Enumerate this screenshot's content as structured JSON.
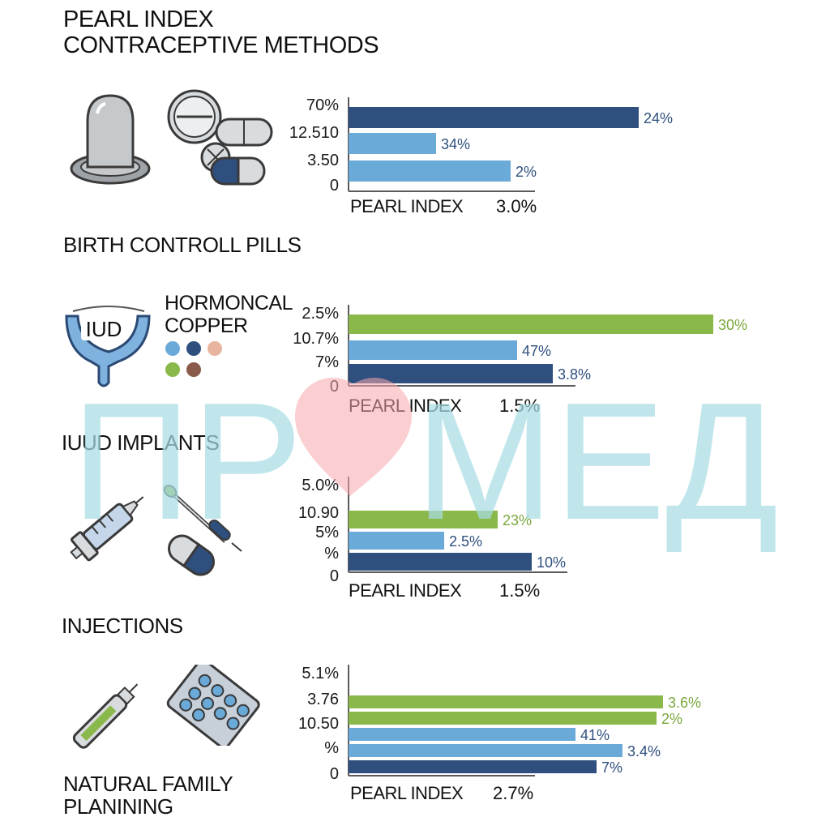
{
  "header": {
    "title_line1": "PEARL INDEX",
    "title_line2": "CONTRACEPTIVE METHODS"
  },
  "sections": {
    "birth_control": "BIRTH CONTROLL PILLS",
    "implants": "IUUD IMPLANTS",
    "injections": "INJECTIONS",
    "natural_line1": "NATURAL FAMILY",
    "natural_line2": "PLANINING"
  },
  "iud": {
    "badge": "IUD",
    "legend_line1": "HORMONCAL",
    "legend_line2": "COPPER"
  },
  "legend_dot_colors": [
    "#6aaad8",
    "#2f4f7f",
    "#e8b4a0",
    "#8bb84a",
    "#8a5a4a"
  ],
  "watermark": {
    "text_left": "ПР",
    "text_right": "МЕД",
    "text_color": "#a8dde4",
    "heart_color": "#f7a7ab"
  },
  "colors": {
    "navy": "#2f4f7f",
    "light_blue": "#6aaad8",
    "green": "#8bb84a"
  },
  "icons": [
    "condom-icon",
    "pill-icon",
    "capsule-icon",
    "iud-icon",
    "syringe-icon",
    "dropper-icon",
    "injector-pen-icon",
    "blister-pack-icon"
  ],
  "chart_data": [
    {
      "type": "bar",
      "orientation": "horizontal",
      "tick_labels": [
        "70%",
        "12.510",
        "3.50",
        "0"
      ],
      "series": [
        {
          "value": 24,
          "label": "24%",
          "color": "#2f4f7f"
        },
        {
          "value": 34,
          "label": "34%",
          "color": "#6aaad8"
        },
        {
          "value": 2,
          "label": "2%",
          "color": "#6aaad8"
        }
      ],
      "xlabel": "PEARL INDEX",
      "pearl_value": "3.0%"
    },
    {
      "type": "bar",
      "orientation": "horizontal",
      "tick_labels": [
        "2.5%",
        "10.7%",
        "7%",
        "0"
      ],
      "series": [
        {
          "value": 30,
          "label": "30%",
          "color": "#8bb84a"
        },
        {
          "value": 47,
          "label": "47%",
          "color": "#6aaad8"
        },
        {
          "value": 3.8,
          "label": "3.8%",
          "color": "#2f4f7f"
        }
      ],
      "xlabel": "PEARL INDEX",
      "pearl_value": "1.5%"
    },
    {
      "type": "bar",
      "orientation": "horizontal",
      "tick_labels": [
        "5.0%",
        "10.90",
        "5%",
        "%",
        "0"
      ],
      "series": [
        {
          "value": 23,
          "label": "23%",
          "color": "#8bb84a"
        },
        {
          "value": 2.5,
          "label": "2.5%",
          "color": "#6aaad8"
        },
        {
          "value": 10,
          "label": "10%",
          "color": "#2f4f7f"
        }
      ],
      "xlabel": "PEARL INDEX",
      "pearl_value": "1.5%"
    },
    {
      "type": "bar",
      "orientation": "horizontal",
      "tick_labels": [
        "5.1%",
        "3.76",
        "10.50",
        "%",
        "0"
      ],
      "series": [
        {
          "value": 3.6,
          "label": "3.6%",
          "color": "#8bb84a"
        },
        {
          "value": 2,
          "label": "2%",
          "color": "#8bb84a"
        },
        {
          "value": 41,
          "label": "41%",
          "color": "#6aaad8"
        },
        {
          "value": 3.4,
          "label": "3.4%",
          "color": "#6aaad8"
        },
        {
          "value": 7,
          "label": "7%",
          "color": "#2f4f7f"
        }
      ],
      "xlabel": "PEARL INDEX",
      "pearl_value": "2.7%"
    }
  ]
}
